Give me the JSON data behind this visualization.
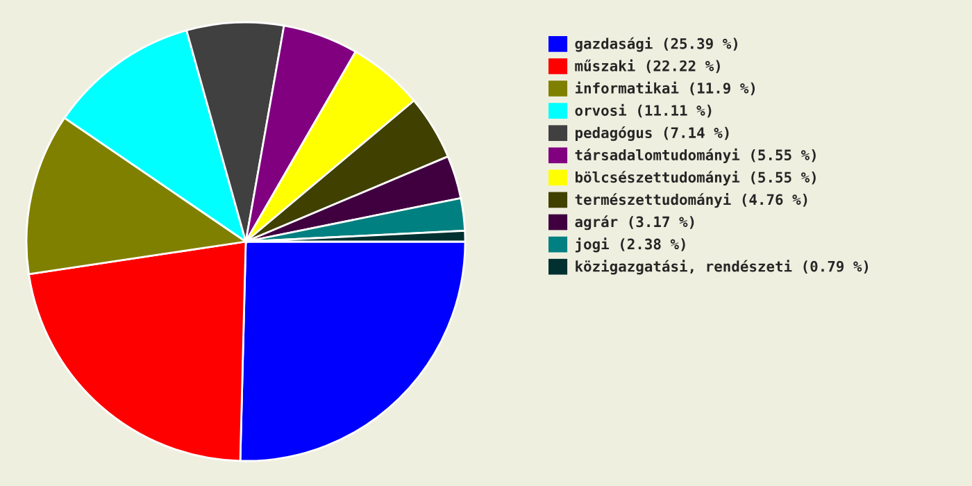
{
  "chart_data": {
    "type": "pie",
    "categories": [
      "gazdasági (25.39 %)",
      "műszaki (22.22 %)",
      "informatikai (11.9 %)",
      "orvosi (11.11 %)",
      "pedagógus (7.14 %)",
      "társadalomtudományi (5.55 %)",
      "bölcsészettudományi (5.55 %)",
      "természettudományi (4.76 %)",
      "agrár (3.17 %)",
      "jogi (2.38 %)",
      "közigazgatási, rendészeti (0.79 %)"
    ],
    "values": [
      25.39,
      22.22,
      11.9,
      11.11,
      7.14,
      5.55,
      5.55,
      4.76,
      3.17,
      2.38,
      0.79
    ],
    "colors": [
      "#0000ff",
      "#ff0000",
      "#808000",
      "#00ffff",
      "#404040",
      "#800080",
      "#ffff00",
      "#404000",
      "#400040",
      "#008080",
      "#003030"
    ],
    "legend": "right"
  }
}
